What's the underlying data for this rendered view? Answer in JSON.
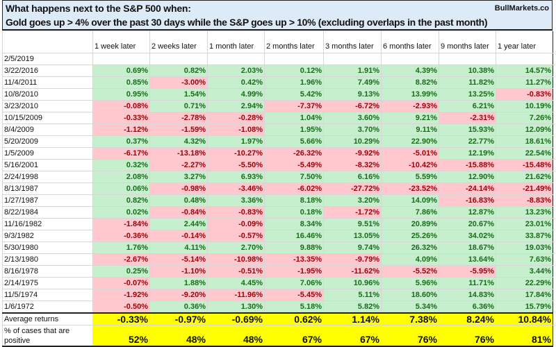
{
  "title": {
    "line1": "What happens next to the S&P 500 when:",
    "line2": "Gold goes up > 4% over the past 30 days while the S&P goes up > 10% (excluding overlaps in the past month)",
    "brand": "BullMarkets.co"
  },
  "columns": [
    "1 week later",
    "2 weeks later",
    "1 month later",
    "2 months later",
    "3 months later",
    "6 months later",
    "9 months later",
    "1 year later"
  ],
  "current_date": "2/5/2019",
  "rows": [
    {
      "date": "3/22/2016",
      "values": [
        "0.69%",
        "0.82%",
        "2.03%",
        "0.12%",
        "1.91%",
        "4.39%",
        "10.38%",
        "14.57%"
      ]
    },
    {
      "date": "11/4/2011",
      "values": [
        "0.85%",
        "-3.00%",
        "0.42%",
        "1.96%",
        "7.49%",
        "8.82%",
        "11.82%",
        "11.27%"
      ]
    },
    {
      "date": "10/8/2010",
      "values": [
        "0.95%",
        "1.54%",
        "4.99%",
        "5.42%",
        "9.13%",
        "13.99%",
        "13.25%",
        "-0.83%"
      ]
    },
    {
      "date": "3/23/2010",
      "values": [
        "-0.08%",
        "0.71%",
        "2.94%",
        "-7.37%",
        "-6.72%",
        "-2.93%",
        "6.21%",
        "10.19%"
      ]
    },
    {
      "date": "10/15/2009",
      "values": [
        "-0.33%",
        "-2.78%",
        "-0.28%",
        "1.04%",
        "3.60%",
        "9.21%",
        "-2.31%",
        "7.26%"
      ]
    },
    {
      "date": "8/4/2009",
      "values": [
        "-1.12%",
        "-1.59%",
        "-1.08%",
        "1.95%",
        "3.70%",
        "9.11%",
        "15.93%",
        "12.09%"
      ]
    },
    {
      "date": "5/20/2009",
      "values": [
        "0.37%",
        "4.32%",
        "1.97%",
        "5.66%",
        "10.29%",
        "22.90%",
        "22.77%",
        "18.61%"
      ]
    },
    {
      "date": "1/5/2009",
      "values": [
        "-6.17%",
        "-13.18%",
        "-10.27%",
        "-26.32%",
        "-9.92%",
        "-5.01%",
        "12.19%",
        "22.54%"
      ]
    },
    {
      "date": "5/16/2001",
      "values": [
        "0.32%",
        "-2.27%",
        "-5.50%",
        "-5.49%",
        "-8.32%",
        "-10.42%",
        "-15.88%",
        "-15.48%"
      ]
    },
    {
      "date": "2/24/1998",
      "values": [
        "2.08%",
        "3.27%",
        "6.93%",
        "7.50%",
        "6.16%",
        "5.59%",
        "12.90%",
        "21.62%"
      ]
    },
    {
      "date": "8/13/1987",
      "values": [
        "0.06%",
        "-0.98%",
        "-3.46%",
        "-6.02%",
        "-27.72%",
        "-23.52%",
        "-24.14%",
        "-21.49%"
      ]
    },
    {
      "date": "1/27/1987",
      "values": [
        "0.82%",
        "0.48%",
        "3.36%",
        "8.18%",
        "3.20%",
        "14.09%",
        "-16.83%",
        "-8.83%"
      ]
    },
    {
      "date": "8/22/1984",
      "values": [
        "0.02%",
        "-0.84%",
        "-0.83%",
        "0.18%",
        "-1.72%",
        "7.86%",
        "12.87%",
        "13.23%"
      ]
    },
    {
      "date": "11/16/1982",
      "values": [
        "-1.84%",
        "2.44%",
        "-0.09%",
        "8.34%",
        "9.51%",
        "20.89%",
        "20.67%",
        "23.01%"
      ]
    },
    {
      "date": "9/3/1982",
      "values": [
        "-0.36%",
        "-0.14%",
        "-0.57%",
        "16.46%",
        "13.05%",
        "25.26%",
        "34.02%",
        "33.87%"
      ]
    },
    {
      "date": "5/30/1980",
      "values": [
        "1.76%",
        "4.11%",
        "2.70%",
        "9.88%",
        "9.74%",
        "26.32%",
        "18.67%",
        "19.03%"
      ]
    },
    {
      "date": "2/13/1980",
      "values": [
        "-2.67%",
        "-5.14%",
        "-10.98%",
        "-13.35%",
        "-9.79%",
        "4.09%",
        "13.64%",
        "7.63%"
      ]
    },
    {
      "date": "8/16/1978",
      "values": [
        "0.25%",
        "-1.10%",
        "-0.51%",
        "-1.95%",
        "-11.62%",
        "-5.52%",
        "-5.95%",
        "3.44%"
      ]
    },
    {
      "date": "2/14/1975",
      "values": [
        "-0.07%",
        "1.88%",
        "4.45%",
        "7.06%",
        "10.96%",
        "5.96%",
        "11.71%",
        "22.29%"
      ]
    },
    {
      "date": "11/5/1974",
      "values": [
        "-1.92%",
        "-9.20%",
        "-11.96%",
        "-5.45%",
        "5.11%",
        "18.60%",
        "14.83%",
        "17.84%"
      ]
    },
    {
      "date": "1/6/1972",
      "values": [
        "-0.50%",
        "0.36%",
        "1.30%",
        "5.18%",
        "5.82%",
        "5.34%",
        "6.36%",
        "15.79%"
      ]
    }
  ],
  "summary": {
    "average_label": "Average returns",
    "average_values": [
      "-0.33%",
      "-0.97%",
      "-0.69%",
      "0.62%",
      "1.14%",
      "7.38%",
      "8.24%",
      "10.84%"
    ],
    "positive_label": "% of cases that are positive",
    "positive_values": [
      "52%",
      "48%",
      "48%",
      "67%",
      "67%",
      "76%",
      "76%",
      "81%"
    ]
  },
  "colors": {
    "positive_fill": "#c6efce",
    "positive_text": "#1a6b1a",
    "negative_fill": "#ffc7ce",
    "negative_text": "#9c0006",
    "summary_fill": "#ffff00",
    "title_fill": "#dcebf7"
  }
}
